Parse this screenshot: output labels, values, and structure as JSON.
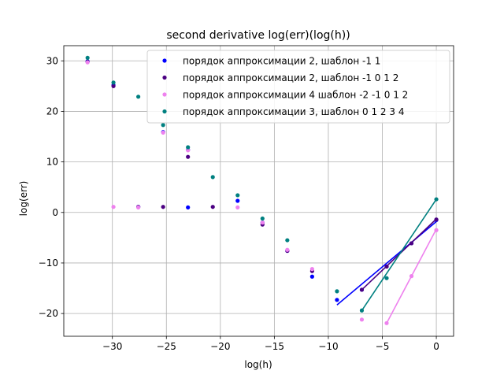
{
  "chart_data": {
    "type": "scatter",
    "title": "second derivative log(err)(log(h))",
    "xlabel": "log(h)",
    "ylabel": "log(err)",
    "xlim": [
      -34.5,
      1.6
    ],
    "ylim": [
      -24.5,
      33.0
    ],
    "xticks": [
      -30,
      -25,
      -20,
      -15,
      -10,
      -5,
      0
    ],
    "yticks": [
      -20,
      -10,
      0,
      10,
      20,
      30
    ],
    "xtick_labels": [
      "−30",
      "−25",
      "−20",
      "−15",
      "−10",
      "−5",
      "0"
    ],
    "ytick_labels": [
      "−20",
      "−10",
      "0",
      "10",
      "20",
      "30"
    ],
    "grid": true,
    "legend_position": "top-right",
    "series": [
      {
        "name": "порядок аппроксимации 2, шаблон -1 1",
        "color": "#0000ff",
        "points": [
          [
            -32.3,
            29.9
          ],
          [
            -29.9,
            25.2
          ],
          [
            -27.6,
            1.1
          ],
          [
            -25.3,
            15.9
          ],
          [
            -23.0,
            1.0
          ],
          [
            -23.0,
            12.4
          ],
          [
            -18.4,
            2.3
          ],
          [
            -16.1,
            -2.0
          ],
          [
            -13.8,
            -7.6
          ],
          [
            -11.5,
            -12.7
          ],
          [
            -9.2,
            -17.3
          ],
          [
            -6.9,
            -15.3
          ],
          [
            -4.6,
            -10.7
          ],
          [
            -2.3,
            -6.1
          ],
          [
            0.0,
            -1.5
          ]
        ],
        "fit": [
          [
            -9.2,
            -18.3
          ],
          [
            0.0,
            -1.8
          ]
        ]
      },
      {
        "name": "порядок аппроксимации 2, шаблон -1 0 1 2",
        "color": "#4b0082",
        "points": [
          [
            -32.3,
            29.8
          ],
          [
            -29.9,
            25.0
          ],
          [
            -27.6,
            1.1
          ],
          [
            -25.3,
            1.1
          ],
          [
            -23.0,
            11.0
          ],
          [
            -20.7,
            1.1
          ],
          [
            -16.1,
            -2.4
          ],
          [
            -13.8,
            -7.6
          ],
          [
            -11.5,
            -11.6
          ],
          [
            -6.9,
            -15.3
          ],
          [
            -4.6,
            -10.7
          ],
          [
            -2.3,
            -6.1
          ],
          [
            0.0,
            -1.4
          ]
        ],
        "fit": [
          [
            -6.9,
            -15.3
          ],
          [
            0.0,
            -1.3
          ]
        ]
      },
      {
        "name": "порядок аппроксимации 4 шаблон -2 -1 0 1 2",
        "color": "#ee82ee",
        "points": [
          [
            -32.3,
            29.7
          ],
          [
            -29.9,
            1.1
          ],
          [
            -27.6,
            1.0
          ],
          [
            -25.3,
            15.8
          ],
          [
            -23.0,
            12.3
          ],
          [
            -18.4,
            1.0
          ],
          [
            -16.1,
            -2.0
          ],
          [
            -13.8,
            -7.4
          ],
          [
            -11.5,
            -11.2
          ],
          [
            -6.9,
            -21.2
          ],
          [
            -4.6,
            -21.9
          ],
          [
            -2.3,
            -12.6
          ],
          [
            0.0,
            -3.5
          ]
        ],
        "fit": [
          [
            -4.6,
            -21.9
          ],
          [
            0.0,
            -3.3
          ]
        ]
      },
      {
        "name": "порядок аппроксимации 3, шаблон 0 1 2 3 4",
        "color": "#008080",
        "points": [
          [
            -32.3,
            30.6
          ],
          [
            -29.9,
            25.7
          ],
          [
            -27.6,
            22.9
          ],
          [
            -25.3,
            17.3
          ],
          [
            -23.0,
            12.9
          ],
          [
            -20.7,
            7.0
          ],
          [
            -18.4,
            3.4
          ],
          [
            -16.1,
            -1.2
          ],
          [
            -13.8,
            -5.5
          ],
          [
            -9.2,
            -15.6
          ],
          [
            -6.9,
            -19.4
          ],
          [
            -4.6,
            -13.0
          ],
          [
            0.0,
            2.6
          ]
        ],
        "fit": [
          [
            -6.9,
            -19.4
          ],
          [
            0.0,
            2.6
          ]
        ]
      }
    ]
  }
}
